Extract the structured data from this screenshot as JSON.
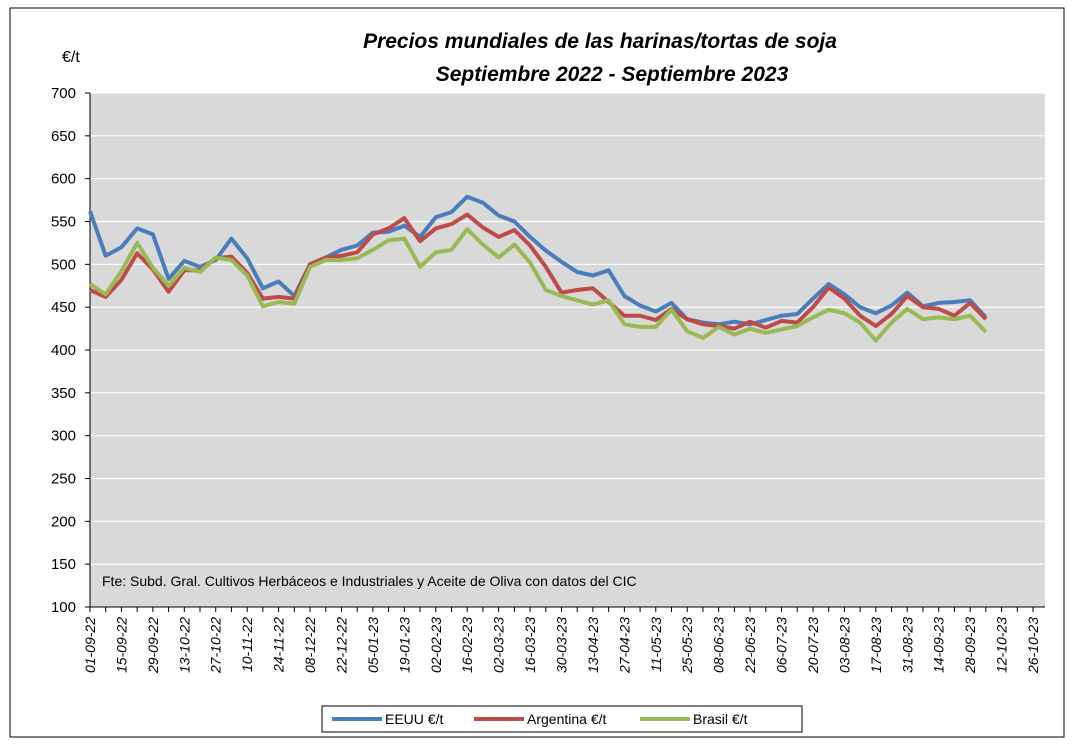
{
  "chart_data": {
    "type": "line",
    "title": "Precios mundiales de las harinas/tortas de soja",
    "subtitle": "Septiembre 2022 - Septiembre 2023",
    "y_label": "€/t",
    "annotation": "Fte: Subd. Gral. Cultivos Herbáceos e Industriales y Aceite de Oliva con datos del CIC",
    "categories": [
      "01-09-22",
      null,
      "15-09-22",
      null,
      "29-09-22",
      null,
      "13-10-22",
      null,
      "27-10-22",
      null,
      "10-11-22",
      null,
      "24-11-22",
      null,
      "08-12-22",
      null,
      "22-12-22",
      null,
      "05-01-23",
      null,
      "19-01-23",
      null,
      "02-02-23",
      null,
      "16-02-23",
      null,
      "02-03-23",
      null,
      "16-03-23",
      null,
      "30-03-23",
      null,
      "13-04-23",
      null,
      "27-04-23",
      null,
      "11-05-23",
      null,
      "25-05-23",
      null,
      "08-06-23",
      null,
      "22-06-23",
      null,
      "06-07-23",
      null,
      "20-07-23",
      null,
      "03-08-23",
      null,
      "17-08-23",
      null,
      "31-08-23",
      null,
      "14-09-23",
      null,
      "28-09-23",
      null,
      "12-10-23",
      null,
      "26-10-23"
    ],
    "series": [
      {
        "name": "EEUU €/t",
        "color": "#4a7ebb",
        "values": [
          562,
          510,
          520,
          542,
          535,
          483,
          504,
          497,
          505,
          530,
          507,
          472,
          480,
          463,
          500,
          508,
          517,
          522,
          537,
          538,
          545,
          532,
          555,
          561,
          579,
          572,
          557,
          550,
          532,
          516,
          503,
          491,
          487,
          493,
          463,
          452,
          445,
          455,
          436,
          432,
          430,
          433,
          430,
          435,
          440,
          442,
          460,
          477,
          465,
          450,
          443,
          452,
          467,
          451,
          455,
          456,
          458,
          438,
          null,
          null,
          null
        ]
      },
      {
        "name": "Argentina €/t",
        "color": "#be4b48",
        "values": [
          470,
          462,
          482,
          513,
          494,
          468,
          493,
          493,
          507,
          509,
          490,
          460,
          462,
          460,
          500,
          508,
          510,
          514,
          535,
          542,
          554,
          527,
          542,
          547,
          558,
          543,
          532,
          540,
          522,
          497,
          467,
          470,
          472,
          456,
          440,
          440,
          435,
          448,
          436,
          430,
          428,
          425,
          433,
          426,
          434,
          432,
          450,
          473,
          460,
          440,
          428,
          442,
          463,
          450,
          448,
          440,
          455,
          436,
          null,
          null,
          null
        ]
      },
      {
        "name": "Brasil €/t",
        "color": "#98b954",
        "values": [
          477,
          465,
          492,
          525,
          496,
          475,
          496,
          491,
          508,
          505,
          487,
          451,
          456,
          454,
          497,
          505,
          505,
          507,
          517,
          528,
          530,
          497,
          514,
          517,
          541,
          523,
          508,
          523,
          502,
          470,
          463,
          458,
          453,
          458,
          430,
          427,
          427,
          447,
          422,
          414,
          427,
          418,
          425,
          420,
          424,
          428,
          438,
          447,
          443,
          432,
          411,
          432,
          448,
          436,
          438,
          436,
          440,
          421,
          null,
          null,
          null
        ]
      }
    ],
    "ylim": [
      100,
      700
    ],
    "yticks": [
      100,
      150,
      200,
      250,
      300,
      350,
      400,
      450,
      500,
      550,
      600,
      650,
      700
    ],
    "grid": true
  }
}
